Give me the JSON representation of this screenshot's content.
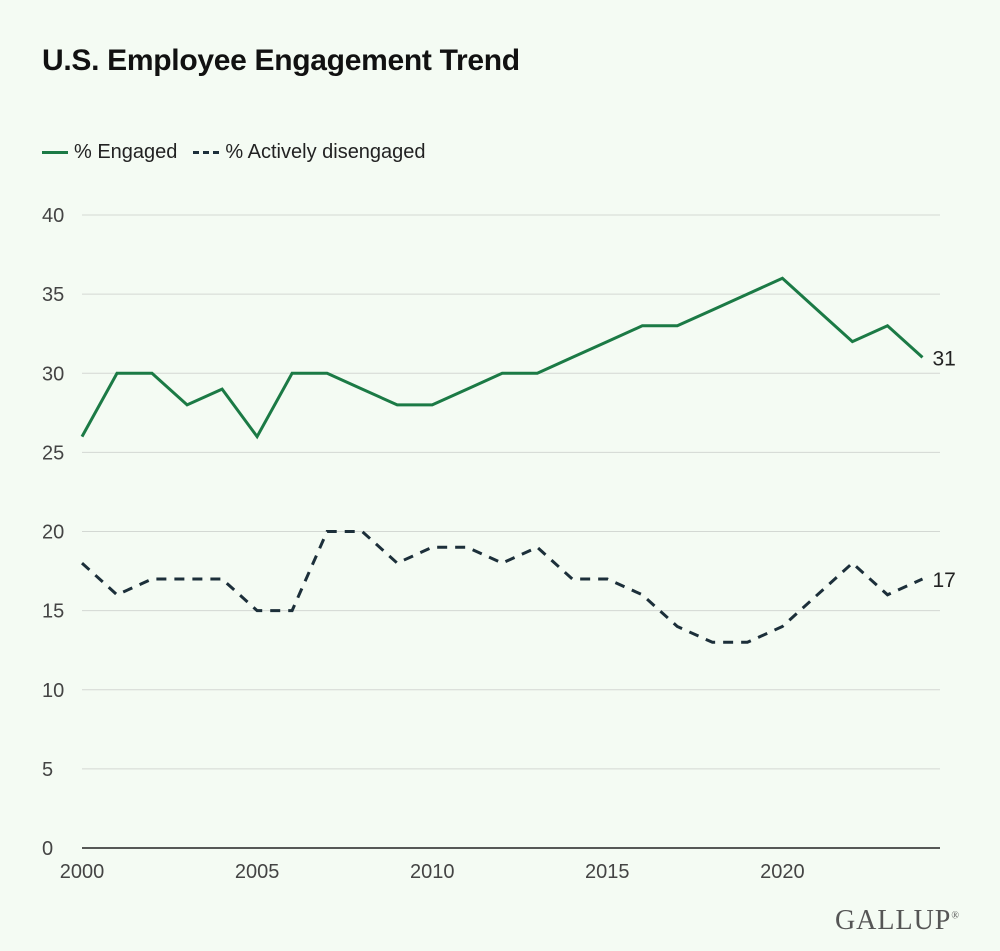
{
  "chart_data": {
    "type": "line",
    "title": "U.S. Employee Engagement Trend",
    "xlabel": "",
    "ylabel": "",
    "xlim": [
      2000,
      2024.5
    ],
    "ylim": [
      0,
      40
    ],
    "yticks": [
      0,
      5,
      10,
      15,
      20,
      25,
      30,
      35,
      40
    ],
    "xticks": [
      2000,
      2005,
      2010,
      2015,
      2020
    ],
    "grid": true,
    "legend_position": "top-left",
    "series": [
      {
        "name": "% Engaged",
        "color": "#1b7a45",
        "style": "solid",
        "end_label": "31",
        "x": [
          2000,
          2001,
          2002,
          2003,
          2004,
          2005,
          2006,
          2007,
          2008,
          2009,
          2010,
          2011,
          2012,
          2013,
          2014,
          2015,
          2016,
          2017,
          2018,
          2019,
          2020,
          2021,
          2022,
          2023,
          2024
        ],
        "values": [
          26,
          30,
          30,
          28,
          29,
          26,
          30,
          30,
          29,
          28,
          28,
          29,
          30,
          30,
          31,
          32,
          33,
          33,
          34,
          35,
          36,
          34,
          32,
          33,
          31
        ]
      },
      {
        "name": "% Actively disengaged",
        "color": "#1c2f3a",
        "style": "dashed",
        "end_label": "17",
        "x": [
          2000,
          2001,
          2002,
          2003,
          2004,
          2005,
          2006,
          2007,
          2008,
          2009,
          2010,
          2011,
          2012,
          2013,
          2014,
          2015,
          2016,
          2017,
          2018,
          2019,
          2020,
          2021,
          2022,
          2023,
          2024
        ],
        "values": [
          18,
          16,
          17,
          17,
          17,
          15,
          15,
          20,
          20,
          18,
          19,
          19,
          18,
          19,
          17,
          17,
          16,
          14,
          13,
          13,
          14,
          16,
          18,
          16,
          17
        ]
      }
    ]
  },
  "brand": {
    "name": "GALLUP",
    "mark": "®"
  }
}
